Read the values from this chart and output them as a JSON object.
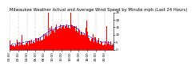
{
  "title": "Milwaukee Weather Actual and Average Wind Speed by Minute mph (Last 24 Hours)",
  "n_points": 1440,
  "bar_color": "#ff0000",
  "line_color": "#0000ff",
  "background_color": "#ffffff",
  "plot_bg_color": "#ffffff",
  "ylim": [
    0,
    25
  ],
  "yticks": [
    0,
    5,
    10,
    15,
    20,
    25
  ],
  "title_fontsize": 3.8,
  "tick_fontsize": 3.0,
  "seed": 42
}
